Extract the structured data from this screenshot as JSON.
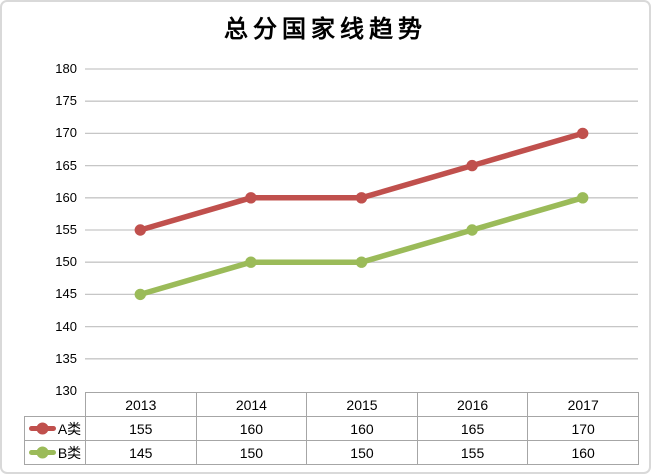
{
  "title": "总分国家线趋势",
  "colors": {
    "series_a": "#C0504D",
    "series_b": "#9BBB59",
    "gridline": "#C6C6C6",
    "table_border": "#A6A6A6",
    "frame_border": "#D9D9D9",
    "text": "#000000"
  },
  "chart_data": {
    "type": "line",
    "title": "总分国家线趋势",
    "categories": [
      "2013",
      "2014",
      "2015",
      "2016",
      "2017"
    ],
    "series": [
      {
        "name": "A类",
        "color": "#C0504D",
        "values": [
          155,
          160,
          160,
          165,
          170
        ]
      },
      {
        "name": "B类",
        "color": "#9BBB59",
        "values": [
          145,
          150,
          150,
          155,
          160
        ]
      }
    ],
    "xlabel": "",
    "ylabel": "",
    "ylim": [
      130,
      180
    ],
    "ytick_step": 5,
    "grid": true,
    "markers": true,
    "legend_position": "data-table-left",
    "data_table_shown": true
  }
}
